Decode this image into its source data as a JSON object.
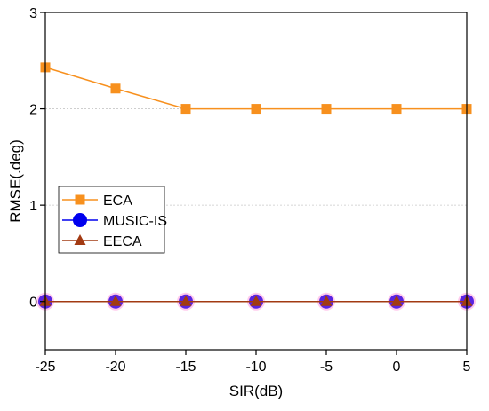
{
  "chart_data": {
    "type": "line",
    "xlabel": "SIR(dB)",
    "ylabel": "RMSE(.deg)",
    "x": [
      -25,
      -20,
      -15,
      -10,
      -5,
      0,
      5
    ],
    "xlim": [
      -25,
      5
    ],
    "ylim": [
      -0.5,
      3
    ],
    "xticks": [
      "-25",
      "-20",
      "-15",
      "-10",
      "-5",
      "0",
      "5"
    ],
    "yticks": [
      "0",
      "1",
      "2",
      "3"
    ],
    "grid": "horizontal dotted at y=1 and y=2",
    "legend_position": "left-middle",
    "series": [
      {
        "name": "ECA",
        "values": [
          2.43,
          2.21,
          2.0,
          2.0,
          2.0,
          2.0,
          2.0
        ],
        "color": "#f7901e",
        "marker": "square"
      },
      {
        "name": "MUSIC-IS",
        "values": [
          0,
          0,
          0,
          0,
          0,
          0,
          0
        ],
        "color": "#0000ee",
        "marker": "circle"
      },
      {
        "name": "EECA",
        "values": [
          0,
          0,
          0,
          0,
          0,
          0,
          0
        ],
        "color": "#a23a12",
        "marker": "triangle",
        "halo_color": "#ff66cc"
      }
    ]
  }
}
